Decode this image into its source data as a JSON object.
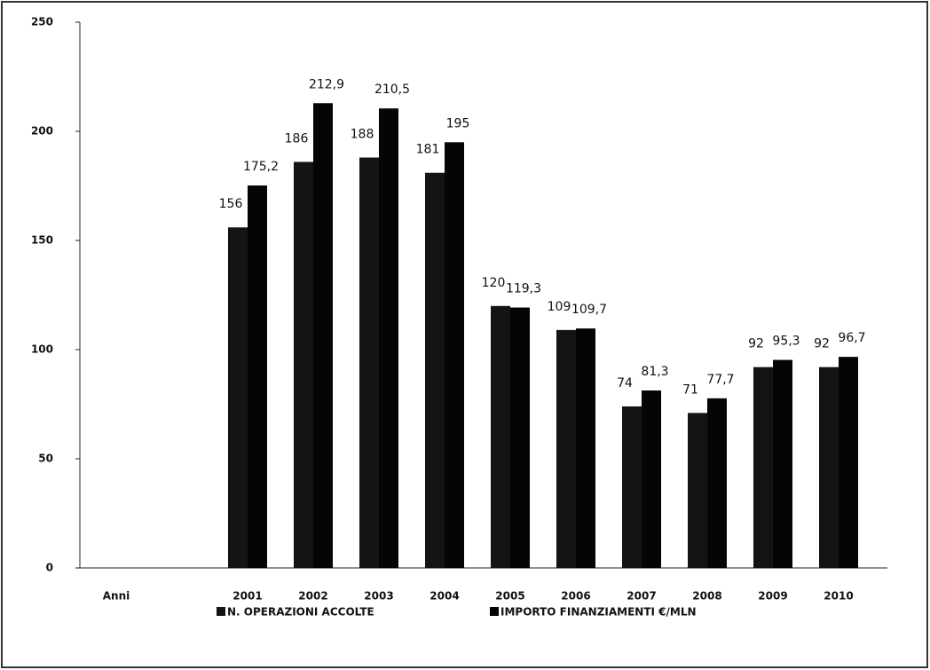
{
  "chart_data": {
    "type": "bar",
    "categories": [
      "Anni",
      null,
      "2001",
      "2002",
      "2003",
      "2004",
      "2005",
      "2006",
      "2007",
      "2008",
      "2009",
      "2010"
    ],
    "series": [
      {
        "name": "N. OPERAZIONI ACCOLTE",
        "color": "#141414",
        "values": [
          null,
          null,
          156,
          186,
          188,
          181,
          120,
          109,
          74,
          71,
          92,
          92
        ]
      },
      {
        "name": "IMPORTO FINANZIAMENTI €/MLN",
        "color": "#050505",
        "values": [
          null,
          null,
          175.2,
          212.9,
          210.5,
          195,
          119.3,
          109.7,
          81.3,
          77.7,
          95.3,
          96.7
        ],
        "value_labels": [
          null,
          null,
          "175,2",
          "212,9",
          "210,5",
          "195",
          "119,3",
          "109,7",
          "81,3",
          "77,7",
          "95,3",
          "96,7"
        ]
      }
    ],
    "ylim": [
      0,
      250
    ],
    "yticks": [
      0,
      50,
      100,
      150,
      200,
      250
    ],
    "grid": false
  }
}
